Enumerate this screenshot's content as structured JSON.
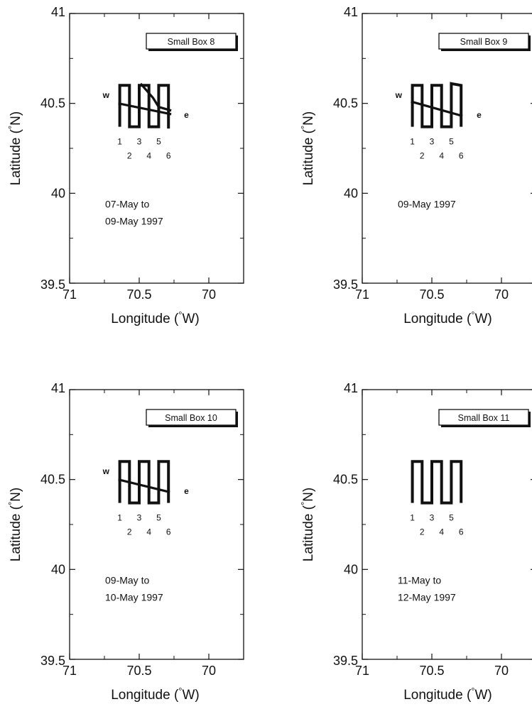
{
  "chart_data": [
    {
      "type": "line",
      "box_label": "Small Box 8",
      "date_text": [
        "07-May   to",
        "09-May 1997"
      ],
      "xlabel": "Longitude (°W)",
      "ylabel": "Latitude (°N)",
      "xlim": [
        71,
        69.75
      ],
      "ylim": [
        39.5,
        41
      ],
      "xticks": [
        "71",
        "70.5",
        "70"
      ],
      "yticks": [
        "41",
        "40.5",
        "40",
        "39.5"
      ],
      "track_labels": [
        "1",
        "2",
        "3",
        "4",
        "5",
        "6"
      ],
      "w_label": "w",
      "e_label": "e",
      "series": [
        {
          "x": [
            70.64,
            70.64,
            70.57,
            70.57,
            70.5,
            70.5,
            70.43,
            70.43,
            70.36,
            70.36,
            70.29,
            70.29
          ],
          "y": [
            40.37,
            40.6,
            40.6,
            40.37,
            40.37,
            40.6,
            40.6,
            40.37,
            40.37,
            40.6,
            40.6,
            40.36
          ]
        },
        {
          "x": [
            70.65,
            70.27
          ],
          "y": [
            40.5,
            40.44
          ]
        },
        {
          "x": [
            70.49,
            70.4,
            70.36,
            70.27
          ],
          "y": [
            40.61,
            40.53,
            40.48,
            40.46
          ]
        }
      ]
    },
    {
      "type": "line",
      "box_label": "Small Box 9",
      "date_text": [
        "09-May 1997"
      ],
      "xlabel": "Longitude (°W)",
      "ylabel": "Latitude (°N)",
      "xlim": [
        71,
        69.75
      ],
      "ylim": [
        39.5,
        41
      ],
      "xticks": [
        "71",
        "70.5",
        "70"
      ],
      "yticks": [
        "41",
        "40.5",
        "40",
        "39.5"
      ],
      "track_labels": [
        "1",
        "2",
        "3",
        "4",
        "5",
        "6"
      ],
      "w_label": "w",
      "e_label": "e",
      "series": [
        {
          "x": [
            70.64,
            70.64,
            70.57,
            70.57,
            70.5,
            70.5,
            70.43,
            70.43,
            70.36,
            70.36,
            70.29,
            70.29
          ],
          "y": [
            40.37,
            40.6,
            40.6,
            40.37,
            40.37,
            40.6,
            40.6,
            40.37,
            40.37,
            40.61,
            40.6,
            40.37
          ]
        },
        {
          "x": [
            70.65,
            70.28
          ],
          "y": [
            40.51,
            40.43
          ]
        }
      ]
    },
    {
      "type": "line",
      "box_label": "Small Box 10",
      "date_text": [
        "09-May   to",
        "10-May 1997"
      ],
      "xlabel": "Longitude (°W)",
      "ylabel": "Latitude (°N)",
      "xlim": [
        71,
        69.75
      ],
      "ylim": [
        39.5,
        41
      ],
      "xticks": [
        "71",
        "70.5",
        "70"
      ],
      "yticks": [
        "41",
        "40.5",
        "40",
        "39.5"
      ],
      "track_labels": [
        "1",
        "2",
        "3",
        "4",
        "5",
        "6"
      ],
      "w_label": "w",
      "e_label": "e",
      "series": [
        {
          "x": [
            70.64,
            70.64,
            70.57,
            70.57,
            70.5,
            70.5,
            70.43,
            70.43,
            70.36,
            70.36,
            70.29,
            70.29
          ],
          "y": [
            40.37,
            40.6,
            40.6,
            40.37,
            40.37,
            40.6,
            40.6,
            40.37,
            40.37,
            40.6,
            40.6,
            40.37
          ]
        },
        {
          "x": [
            70.65,
            70.28
          ],
          "y": [
            40.5,
            40.43
          ]
        }
      ]
    },
    {
      "type": "line",
      "box_label": "Small Box 11",
      "date_text": [
        "11-May   to",
        "12-May 1997"
      ],
      "xlabel": "Longitude (°W)",
      "ylabel": "Latitude (°N)",
      "xlim": [
        71,
        69.75
      ],
      "ylim": [
        39.5,
        41
      ],
      "xticks": [
        "71",
        "70.5",
        "70"
      ],
      "yticks": [
        "41",
        "40.5",
        "40",
        "39.5"
      ],
      "track_labels": [
        "1",
        "2",
        "3",
        "4",
        "5",
        "6"
      ],
      "w_label": "",
      "e_label": "",
      "series": [
        {
          "x": [
            70.64,
            70.64,
            70.57,
            70.57,
            70.5,
            70.5,
            70.43,
            70.43,
            70.36,
            70.36,
            70.29,
            70.29
          ],
          "y": [
            40.37,
            40.6,
            40.6,
            40.37,
            40.37,
            40.6,
            40.6,
            40.37,
            40.37,
            40.6,
            40.6,
            40.37
          ]
        }
      ]
    }
  ]
}
